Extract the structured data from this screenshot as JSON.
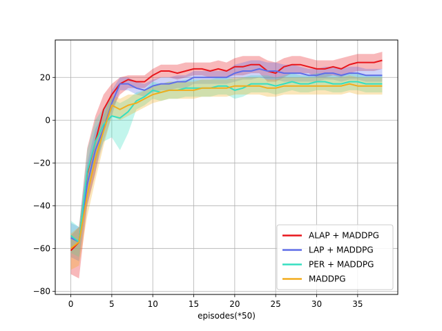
{
  "chart_data": {
    "type": "line",
    "title": "",
    "xlabel": "episodes(*50)",
    "ylabel": "",
    "xlim": [
      -1.9,
      39.9
    ],
    "ylim": [
      -81.5,
      37.5
    ],
    "xticks": [
      0,
      5,
      10,
      15,
      20,
      25,
      30,
      35
    ],
    "yticks": [
      -80,
      -60,
      -40,
      -20,
      0,
      20
    ],
    "grid": true,
    "legend_position": "lower-right",
    "x": [
      0,
      1,
      2,
      3,
      4,
      5,
      6,
      7,
      8,
      9,
      10,
      11,
      12,
      13,
      14,
      15,
      16,
      17,
      18,
      19,
      20,
      21,
      22,
      23,
      24,
      25,
      26,
      27,
      28,
      29,
      30,
      31,
      32,
      33,
      34,
      35,
      36,
      37,
      38
    ],
    "series": [
      {
        "name": "ALAP + MADDPG",
        "color": "#e8151b",
        "values": [
          -61,
          -57,
          -25,
          -10,
          5,
          12,
          17,
          19,
          18,
          18,
          21,
          23,
          23,
          22,
          23,
          24,
          24,
          23,
          24,
          23,
          25,
          25,
          26,
          26,
          23,
          22,
          25,
          26,
          26,
          25,
          24,
          24,
          25,
          24,
          26,
          27,
          27,
          27,
          28
        ],
        "upper": [
          -54,
          -50,
          -13,
          2,
          12,
          17,
          20,
          21,
          21,
          21,
          24,
          26,
          26,
          26,
          27,
          27,
          27,
          27,
          28,
          27,
          29,
          30,
          30,
          30,
          28,
          27,
          29,
          30,
          30,
          29,
          28,
          28,
          28,
          29,
          30,
          31,
          31,
          31,
          32
        ],
        "lower": [
          -72,
          -74,
          -40,
          -25,
          -5,
          5,
          12,
          15,
          15,
          15,
          18,
          20,
          20,
          19,
          20,
          21,
          21,
          20,
          20,
          20,
          21,
          21,
          22,
          22,
          18,
          18,
          20,
          22,
          22,
          22,
          20,
          20,
          21,
          20,
          22,
          23,
          23,
          23,
          24
        ]
      },
      {
        "name": "LAP + MADDPG",
        "color": "#5e6de8",
        "values": [
          -55,
          -57,
          -30,
          -14,
          -4,
          8,
          17,
          17,
          15,
          14,
          16,
          17,
          17,
          18,
          18,
          20,
          20,
          20,
          20,
          20,
          22,
          23,
          23,
          24,
          23,
          23,
          22,
          22,
          22,
          21,
          21,
          22,
          22,
          21,
          22,
          22,
          21,
          21,
          21
        ],
        "upper": [
          -48,
          -50,
          -20,
          -4,
          3,
          14,
          20,
          20,
          18,
          17,
          19,
          20,
          20,
          21,
          21,
          23,
          23,
          23,
          23,
          23,
          26,
          27,
          28,
          28,
          27,
          27,
          26,
          26,
          25,
          24,
          24,
          25,
          25,
          24,
          25,
          25,
          24,
          24,
          24
        ],
        "lower": [
          -64,
          -66,
          -40,
          -24,
          -10,
          2,
          14,
          14,
          12,
          11,
          13,
          14,
          14,
          15,
          15,
          17,
          17,
          17,
          17,
          17,
          18,
          19,
          19,
          20,
          19,
          19,
          18,
          18,
          18,
          18,
          18,
          19,
          19,
          18,
          19,
          19,
          18,
          18,
          18
        ]
      },
      {
        "name": "PER + MADDPG",
        "color": "#35dfc1",
        "values": [
          -54,
          -57,
          -24,
          -10,
          -2,
          2,
          1,
          4,
          9,
          11,
          14,
          13,
          14,
          14,
          15,
          15,
          15,
          15,
          16,
          16,
          14,
          15,
          17,
          17,
          17,
          16,
          17,
          18,
          17,
          17,
          18,
          18,
          17,
          17,
          18,
          18,
          17,
          17,
          17
        ],
        "upper": [
          -47,
          -50,
          -14,
          0,
          6,
          10,
          8,
          10,
          13,
          14,
          18,
          17,
          18,
          18,
          19,
          19,
          19,
          19,
          20,
          20,
          19,
          20,
          21,
          21,
          21,
          20,
          21,
          22,
          21,
          21,
          22,
          22,
          21,
          21,
          22,
          22,
          21,
          21,
          21
        ],
        "lower": [
          -62,
          -64,
          -34,
          -20,
          -10,
          -8,
          -14,
          -6,
          5,
          7,
          10,
          9,
          10,
          10,
          11,
          11,
          11,
          11,
          12,
          12,
          10,
          11,
          13,
          13,
          13,
          12,
          13,
          14,
          13,
          13,
          14,
          14,
          13,
          13,
          14,
          14,
          13,
          13,
          13
        ]
      },
      {
        "name": "MADDPG",
        "color": "#f2ac1c",
        "values": [
          -60,
          -57,
          -35,
          -18,
          -5,
          7,
          5,
          7,
          8,
          10,
          12,
          13,
          14,
          14,
          14,
          14,
          15,
          15,
          15,
          15,
          16,
          16,
          16,
          16,
          15,
          15,
          16,
          16,
          16,
          16,
          16,
          16,
          16,
          16,
          17,
          16,
          16,
          16,
          16
        ],
        "upper": [
          -53,
          -50,
          -25,
          -8,
          2,
          12,
          10,
          12,
          12,
          14,
          16,
          17,
          18,
          18,
          18,
          18,
          19,
          19,
          19,
          19,
          20,
          20,
          20,
          20,
          19,
          19,
          20,
          20,
          20,
          20,
          20,
          20,
          20,
          20,
          21,
          20,
          20,
          20,
          20
        ],
        "lower": [
          -70,
          -68,
          -45,
          -28,
          -12,
          2,
          0,
          2,
          4,
          6,
          8,
          9,
          10,
          10,
          10,
          10,
          11,
          11,
          11,
          11,
          12,
          12,
          12,
          12,
          11,
          11,
          12,
          12,
          12,
          12,
          12,
          12,
          12,
          12,
          13,
          12,
          12,
          12,
          12
        ]
      }
    ]
  }
}
